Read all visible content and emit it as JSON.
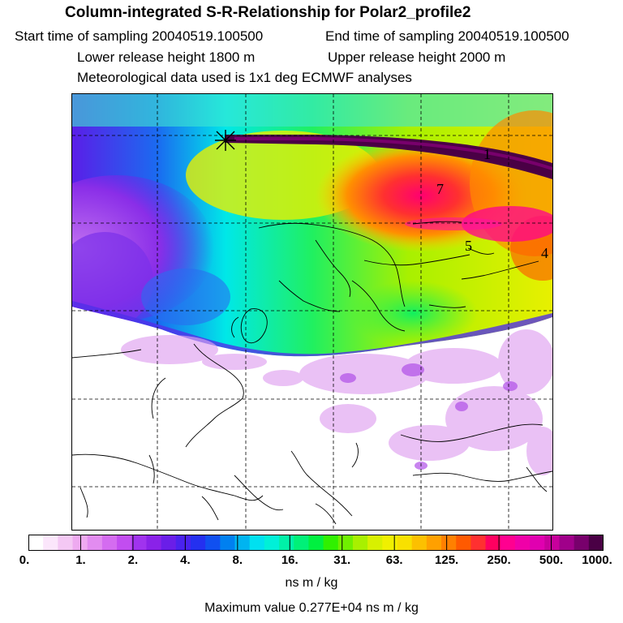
{
  "header": {
    "title": "Column-integrated S-R-Relationship for Polar2_profile2",
    "start_time": "Start time of sampling 20040519.100500",
    "end_time": "End time of sampling 20040519.100500",
    "lower_release": "Lower release height 1800 m",
    "upper_release": "Upper release height 2000 m",
    "met_data": "Meteorological data used is 1x1 deg ECMWF analyses"
  },
  "map": {
    "contour_labels": [
      "1",
      "7",
      "5",
      "4"
    ],
    "release_marker": "star-marker"
  },
  "colorbar": {
    "tick_labels": [
      "0.",
      "1.",
      "2.",
      "4.",
      "8.",
      "16.",
      "31.",
      "63.",
      "125.",
      "250.",
      "500.",
      "1000."
    ],
    "colors": [
      "#ffffff",
      "#fbe6fb",
      "#f4c8f4",
      "#eeaaf0",
      "#e28cf0",
      "#d46cf0",
      "#c24df0",
      "#a033ee",
      "#8a22e8",
      "#6a1ee8",
      "#4a22ee",
      "#2430f0",
      "#1050f0",
      "#0080f0",
      "#00b4f0",
      "#00e0f0",
      "#00f0d8",
      "#00f0a8",
      "#00f078",
      "#00f040",
      "#30f000",
      "#70f000",
      "#a8f000",
      "#d8f000",
      "#f0f000",
      "#f8e000",
      "#fcc000",
      "#ffa000",
      "#ff8000",
      "#ff5a00",
      "#ff3030",
      "#ff0060",
      "#ff0090",
      "#f000a8",
      "#e000b0",
      "#c8009c",
      "#a0008a",
      "#78006c",
      "#4a0045"
    ],
    "units": "ns m / kg",
    "max_value": "Maximum value  0.277E+04 ns m / kg"
  }
}
